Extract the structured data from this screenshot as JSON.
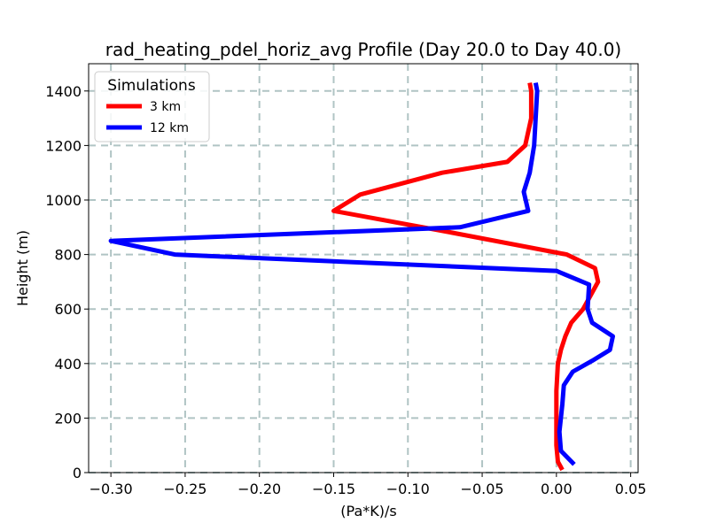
{
  "chart_data": {
    "type": "line",
    "title": "rad_heating_pdel_horiz_avg Profile (Day 20.0 to Day 40.0)",
    "xlabel": "(Pa*K)/s",
    "ylabel": "Height (m)",
    "xlim": [
      -0.315,
      0.055
    ],
    "ylim": [
      0,
      1500
    ],
    "x_ticks": [
      -0.3,
      -0.25,
      -0.2,
      -0.15,
      -0.1,
      -0.05,
      0.0,
      0.05
    ],
    "x_tick_labels": [
      "−0.30",
      "−0.25",
      "−0.20",
      "−0.15",
      "−0.10",
      "−0.05",
      "0.00",
      "0.05"
    ],
    "y_ticks": [
      0,
      200,
      400,
      600,
      800,
      1000,
      1200,
      1400
    ],
    "y_tick_labels": [
      "0",
      "200",
      "400",
      "600",
      "800",
      "1000",
      "1200",
      "1400"
    ],
    "grid": true,
    "legend": {
      "title": "Simulations",
      "placement": "top-left"
    },
    "series": [
      {
        "name": "3 km",
        "color": "#ff0000",
        "x": [
          0.004,
          0.001,
          0.0,
          0.0,
          0.0,
          0.001,
          0.003,
          0.006,
          0.01,
          0.018,
          0.028,
          0.026,
          0.007,
          -0.07,
          -0.15,
          -0.132,
          -0.077,
          -0.033,
          -0.021,
          -0.017,
          -0.017,
          -0.018
        ],
        "y": [
          10,
          40,
          100,
          200,
          300,
          400,
          450,
          500,
          550,
          600,
          700,
          750,
          800,
          880,
          960,
          1020,
          1100,
          1140,
          1200,
          1300,
          1400,
          1430
        ]
      },
      {
        "name": "12 km",
        "color": "#0000ff",
        "x": [
          0.012,
          0.003,
          0.002,
          0.004,
          0.005,
          0.011,
          0.024,
          0.036,
          0.038,
          0.024,
          0.021,
          0.022,
          0.0,
          -0.257,
          -0.3,
          -0.065,
          -0.019,
          -0.022,
          -0.018,
          -0.015,
          -0.014,
          -0.013,
          -0.014
        ],
        "y": [
          30,
          80,
          150,
          250,
          320,
          370,
          410,
          450,
          500,
          550,
          600,
          690,
          740,
          800,
          850,
          900,
          960,
          1030,
          1100,
          1200,
          1300,
          1400,
          1430
        ]
      }
    ]
  }
}
